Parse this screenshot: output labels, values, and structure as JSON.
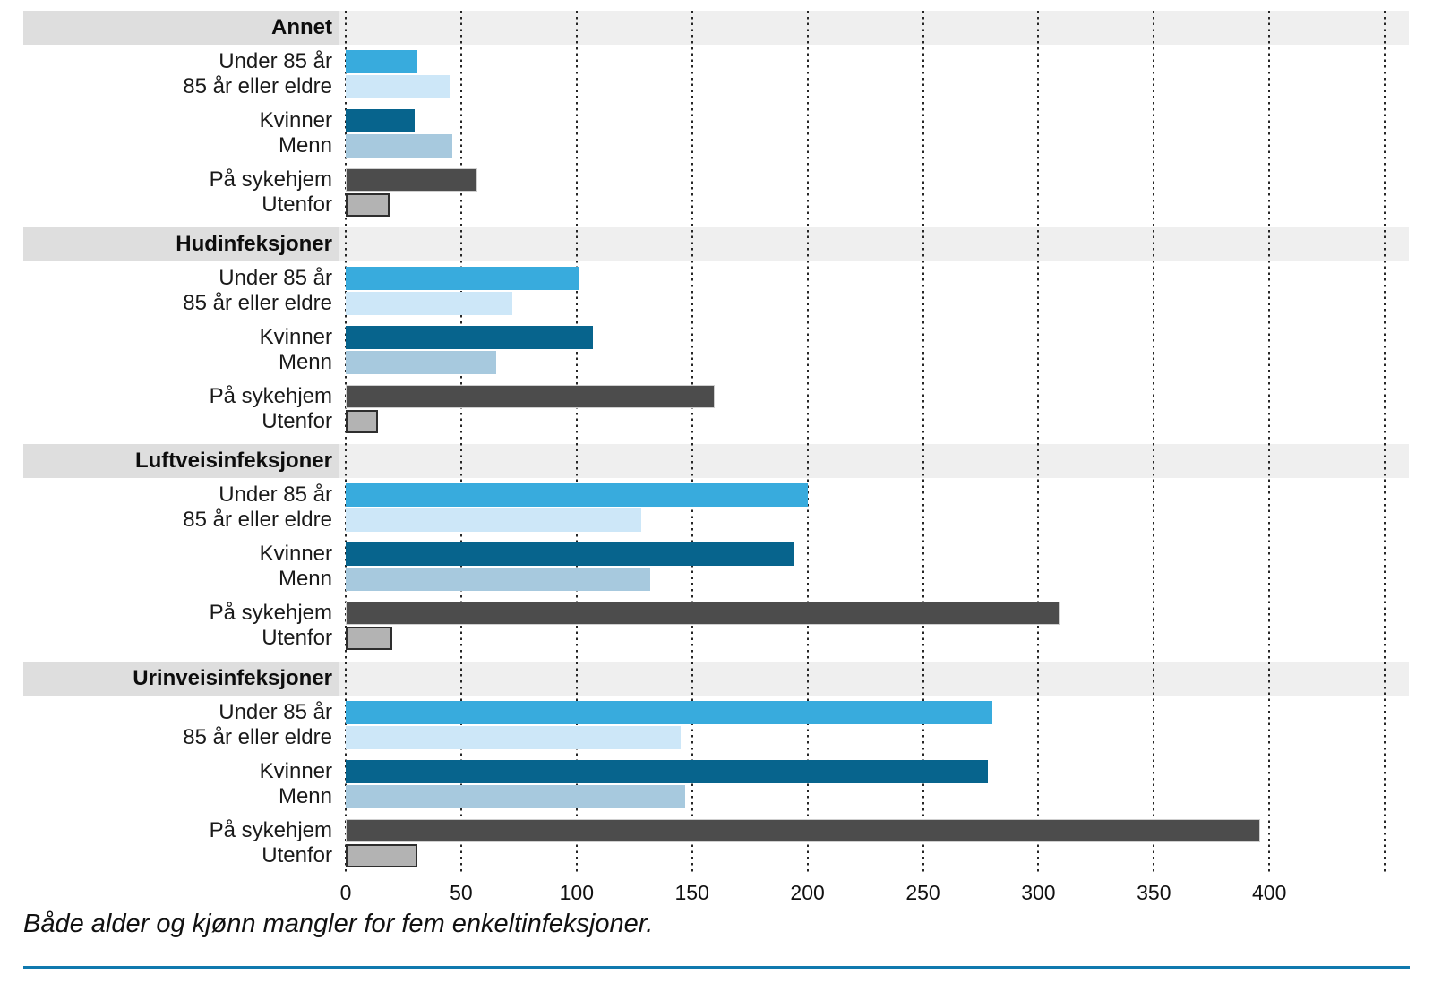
{
  "footnote": "Både alder og kjønn mangler for fem enkeltinfeksjoner.",
  "colors": {
    "band_label_bg": "#dedede",
    "band_plot_bg": "#efefef",
    "gridline": "#262626",
    "bottom_rule": "#1079ae",
    "text": "#1a1a1a"
  },
  "chart_data": {
    "type": "bar",
    "orientation": "horizontal",
    "title": "",
    "xlabel": "",
    "ylabel": "",
    "xlim": [
      0,
      460
    ],
    "grid": "dotted-vertical",
    "legend_position": "none",
    "x_ticks": [
      "0",
      "50",
      "100",
      "150",
      "200",
      "250",
      "300",
      "350",
      "400"
    ],
    "x_tick_values": [
      0,
      50,
      100,
      150,
      200,
      250,
      300,
      350,
      400
    ],
    "gridline_values": [
      0,
      50,
      100,
      150,
      200,
      250,
      300,
      350,
      400,
      450
    ],
    "series_labels": [
      "Under 85 år",
      "85 år eller eldre",
      "Kvinner",
      "Menn",
      "På sykehjem",
      "Utenfor"
    ],
    "series_colors": [
      "#38abdd",
      "#cde7f8",
      "#07648d",
      "#a7c9de",
      "#4c4c4c",
      "#b3b3b3"
    ],
    "series_border_colors": [
      null,
      null,
      null,
      null,
      "#cfcfcf",
      "#2e2e2e"
    ],
    "groups": [
      {
        "label": "Annet",
        "values": [
          31,
          45,
          30,
          46,
          57,
          19
        ]
      },
      {
        "label": "Hudinfeksjoner",
        "values": [
          101,
          72,
          107,
          65,
          160,
          14
        ]
      },
      {
        "label": "Luftveisinfeksjoner",
        "values": [
          200,
          128,
          194,
          132,
          309,
          20
        ]
      },
      {
        "label": "Urinveisinfeksjoner",
        "values": [
          280,
          145,
          278,
          147,
          396,
          31
        ]
      }
    ]
  }
}
